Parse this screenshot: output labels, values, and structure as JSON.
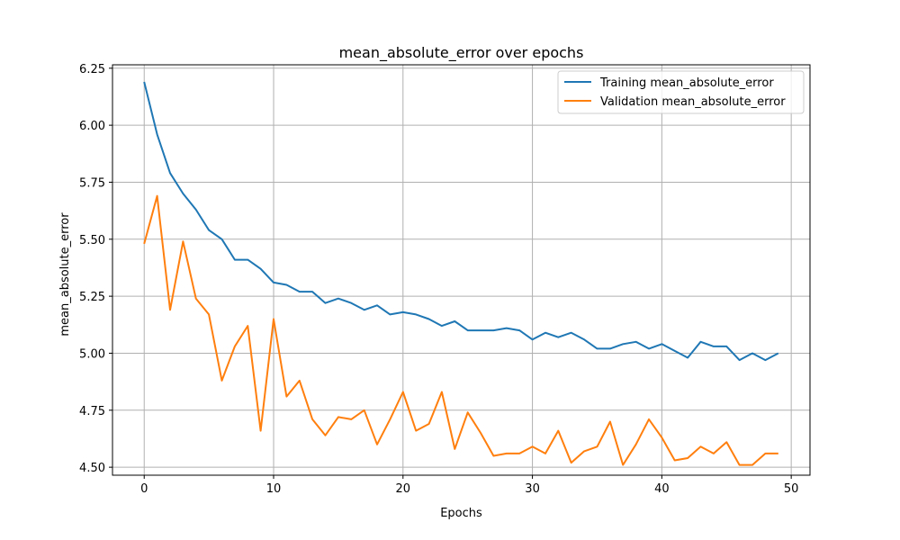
{
  "chart_data": {
    "type": "line",
    "title": "mean_absolute_error over epochs",
    "xlabel": "Epochs",
    "ylabel": "mean_absolute_error",
    "xlim": [
      -2.45,
      51.45
    ],
    "ylim": [
      4.465,
      6.265
    ],
    "xticks": [
      0,
      10,
      20,
      30,
      40,
      50
    ],
    "yticks": [
      4.5,
      4.75,
      5.0,
      5.25,
      5.5,
      5.75,
      6.0,
      6.25
    ],
    "ytick_labels": [
      "4.50",
      "4.75",
      "5.00",
      "5.25",
      "5.50",
      "5.75",
      "6.00",
      "6.25"
    ],
    "grid": true,
    "legend_position": "top-right",
    "x": [
      0,
      1,
      2,
      3,
      4,
      5,
      6,
      7,
      8,
      9,
      10,
      11,
      12,
      13,
      14,
      15,
      16,
      17,
      18,
      19,
      20,
      21,
      22,
      23,
      24,
      25,
      26,
      27,
      28,
      29,
      30,
      31,
      32,
      33,
      34,
      35,
      36,
      37,
      38,
      39,
      40,
      41,
      42,
      43,
      44,
      45,
      46,
      47,
      48,
      49
    ],
    "series": [
      {
        "name": "Training mean_absolute_error",
        "color": "#1f77b4",
        "values": [
          6.19,
          5.96,
          5.79,
          5.7,
          5.63,
          5.54,
          5.5,
          5.41,
          5.41,
          5.37,
          5.31,
          5.3,
          5.27,
          5.27,
          5.22,
          5.24,
          5.22,
          5.19,
          5.21,
          5.17,
          5.18,
          5.17,
          5.15,
          5.12,
          5.14,
          5.1,
          5.1,
          5.1,
          5.11,
          5.1,
          5.06,
          5.09,
          5.07,
          5.09,
          5.06,
          5.02,
          5.02,
          5.04,
          5.05,
          5.02,
          5.04,
          5.01,
          4.98,
          5.05,
          5.03,
          5.03,
          4.97,
          5.0,
          4.97,
          5.0
        ]
      },
      {
        "name": "Validation mean_absolute_error",
        "color": "#ff7f0e",
        "values": [
          5.48,
          5.69,
          5.19,
          5.49,
          5.24,
          5.17,
          4.88,
          5.03,
          5.12,
          4.66,
          5.15,
          4.81,
          4.88,
          4.71,
          4.64,
          4.72,
          4.71,
          4.75,
          4.6,
          4.71,
          4.83,
          4.66,
          4.69,
          4.83,
          4.58,
          4.74,
          4.65,
          4.55,
          4.56,
          4.56,
          4.59,
          4.56,
          4.66,
          4.52,
          4.57,
          4.59,
          4.7,
          4.51,
          4.6,
          4.71,
          4.63,
          4.53,
          4.54,
          4.59,
          4.56,
          4.61,
          4.51,
          4.51,
          4.56,
          4.56
        ]
      }
    ]
  }
}
